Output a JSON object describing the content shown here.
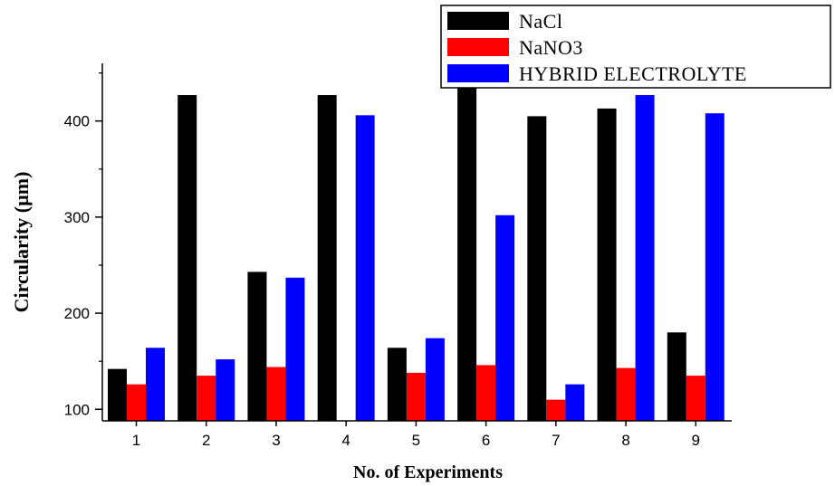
{
  "chart_data": {
    "type": "bar",
    "xlabel": "No. of Experiments",
    "ylabel": "Circularity (µm)",
    "categories": [
      "1",
      "2",
      "3",
      "4",
      "5",
      "6",
      "7",
      "8",
      "9"
    ],
    "ylim": [
      88,
      460
    ],
    "yticks": [
      100,
      200,
      300,
      400
    ],
    "legend_position": "top-right",
    "grid": false,
    "series": [
      {
        "name": "NaCl",
        "color": "#000000",
        "values": [
          142,
          427,
          243,
          427,
          164,
          443,
          405,
          413,
          180
        ]
      },
      {
        "name": "NaNO3",
        "color": "#ff0000",
        "values": [
          126,
          135,
          144,
          88,
          138,
          146,
          110,
          143,
          135
        ]
      },
      {
        "name": "HYBRID ELECTROLYTE",
        "color": "#0000ff",
        "values": [
          164,
          152,
          237,
          406,
          174,
          302,
          126,
          427,
          408
        ]
      }
    ]
  }
}
